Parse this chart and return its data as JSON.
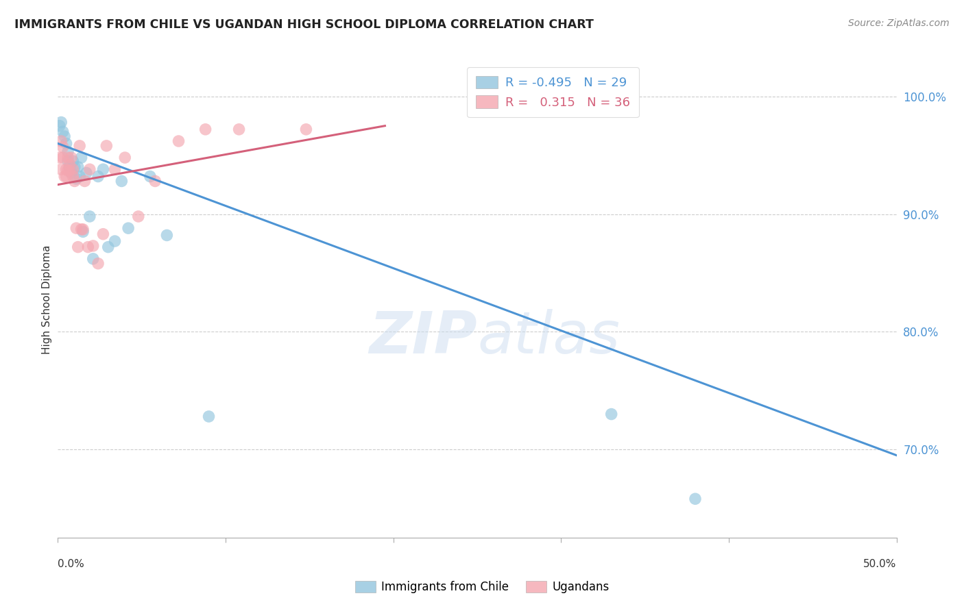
{
  "title": "IMMIGRANTS FROM CHILE VS UGANDAN HIGH SCHOOL DIPLOMA CORRELATION CHART",
  "source": "Source: ZipAtlas.com",
  "ylabel": "High School Diploma",
  "ytick_labels": [
    "70.0%",
    "80.0%",
    "90.0%",
    "100.0%"
  ],
  "ytick_values": [
    0.7,
    0.8,
    0.9,
    1.0
  ],
  "xlim": [
    0.0,
    0.5
  ],
  "ylim": [
    0.625,
    1.03
  ],
  "blue_color": "#92c5de",
  "pink_color": "#f4a6b0",
  "blue_line_color": "#4d94d4",
  "pink_line_color": "#d4607a",
  "watermark_zip": "ZIP",
  "watermark_atlas": "atlas",
  "chile_scatter_x": [
    0.001,
    0.002,
    0.003,
    0.004,
    0.005,
    0.006,
    0.006,
    0.007,
    0.008,
    0.009,
    0.01,
    0.011,
    0.012,
    0.013,
    0.014,
    0.015,
    0.017,
    0.019,
    0.021,
    0.024,
    0.027,
    0.03,
    0.034,
    0.038,
    0.042,
    0.055,
    0.065,
    0.09,
    0.33,
    0.38
  ],
  "chile_scatter_y": [
    0.975,
    0.978,
    0.97,
    0.966,
    0.96,
    0.953,
    0.945,
    0.94,
    0.935,
    0.945,
    0.94,
    0.93,
    0.94,
    0.932,
    0.948,
    0.885,
    0.935,
    0.898,
    0.862,
    0.932,
    0.938,
    0.872,
    0.877,
    0.928,
    0.888,
    0.932,
    0.882,
    0.728,
    0.73,
    0.658
  ],
  "uganda_scatter_x": [
    0.001,
    0.002,
    0.002,
    0.003,
    0.003,
    0.004,
    0.005,
    0.005,
    0.006,
    0.006,
    0.007,
    0.007,
    0.008,
    0.009,
    0.009,
    0.01,
    0.011,
    0.012,
    0.013,
    0.014,
    0.015,
    0.016,
    0.018,
    0.019,
    0.021,
    0.024,
    0.027,
    0.029,
    0.034,
    0.04,
    0.048,
    0.058,
    0.072,
    0.088,
    0.108,
    0.148
  ],
  "uganda_scatter_y": [
    0.948,
    0.962,
    0.938,
    0.957,
    0.948,
    0.932,
    0.938,
    0.932,
    0.948,
    0.937,
    0.942,
    0.937,
    0.948,
    0.938,
    0.932,
    0.928,
    0.888,
    0.872,
    0.958,
    0.887,
    0.887,
    0.928,
    0.872,
    0.938,
    0.873,
    0.858,
    0.883,
    0.958,
    0.938,
    0.948,
    0.898,
    0.928,
    0.962,
    0.972,
    0.972,
    0.972
  ],
  "blue_line_x": [
    0.0,
    0.5
  ],
  "blue_line_y": [
    0.96,
    0.695
  ],
  "pink_line_x": [
    0.0,
    0.195
  ],
  "pink_line_y": [
    0.925,
    0.975
  ]
}
